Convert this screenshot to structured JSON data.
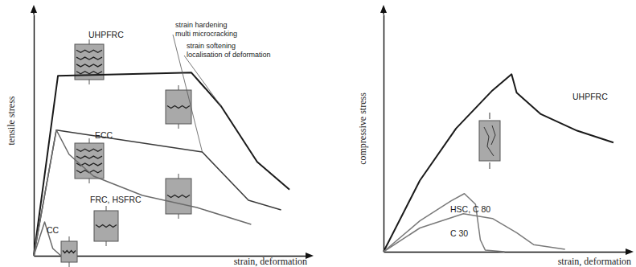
{
  "chart_data": [
    {
      "type": "line",
      "x_label": "strain, deformation",
      "y_label": "tensile stress",
      "xlim": [
        0,
        100
      ],
      "ylim": [
        0,
        100
      ],
      "xticks": [],
      "yticks": [],
      "tick_labels": false,
      "series": [
        {
          "name": "UHPFRC",
          "color": "#1a1a1a",
          "x": [
            0,
            8.9,
            58,
            68.9,
            82.2,
            94.1
          ],
          "values": [
            0,
            74.6,
            75.9,
            62,
            38.9,
            27.4
          ]
        },
        {
          "name": "ECC",
          "color": "#3a3a3a",
          "x": [
            0,
            8.3,
            62,
            79,
            91
          ],
          "values": [
            0,
            52.1,
            43,
            23,
            19
          ]
        },
        {
          "name": "FRC, HSFRC",
          "color": "#6a6a6a",
          "x": [
            0,
            8.3,
            13,
            22,
            40,
            60,
            80
          ],
          "values": [
            0,
            52.1,
            42,
            33,
            25,
            20,
            13
          ]
        },
        {
          "name": "CC",
          "color": "#6a6a6a",
          "x": [
            0,
            4,
            7,
            10
          ],
          "values": [
            0,
            14,
            3,
            0
          ]
        }
      ],
      "annotations": [
        [
          "strain hardening",
          "multi microcracking"
        ],
        [
          "strain softening",
          "localisation of deformation"
        ]
      ]
    },
    {
      "type": "line",
      "x_label": "strain, deformation",
      "y_label": "compressive stress",
      "xlim": [
        0,
        100
      ],
      "ylim": [
        0,
        100
      ],
      "xticks": [],
      "yticks": [],
      "tick_labels": false,
      "series": [
        {
          "name": "UHPFRC",
          "color": "#1a1a1a",
          "x": [
            0,
            15,
            30,
            45,
            52.9,
            55,
            65,
            80,
            95
          ],
          "values": [
            0,
            30,
            52,
            68,
            74.8,
            67,
            58,
            51,
            46
          ]
        },
        {
          "name": "HSC, C 80",
          "color": "#7a7a7a",
          "x": [
            0,
            15,
            28,
            33.4,
            38,
            40,
            42,
            50
          ],
          "values": [
            0,
            13,
            21.5,
            24.5,
            20,
            5,
            0.7,
            0
          ]
        },
        {
          "name": "C 30",
          "color": "#7a7a7a",
          "x": [
            0,
            15,
            33,
            45,
            55,
            62,
            75
          ],
          "values": [
            0,
            10,
            16,
            14,
            8,
            3,
            1
          ]
        }
      ],
      "annotations": []
    }
  ]
}
